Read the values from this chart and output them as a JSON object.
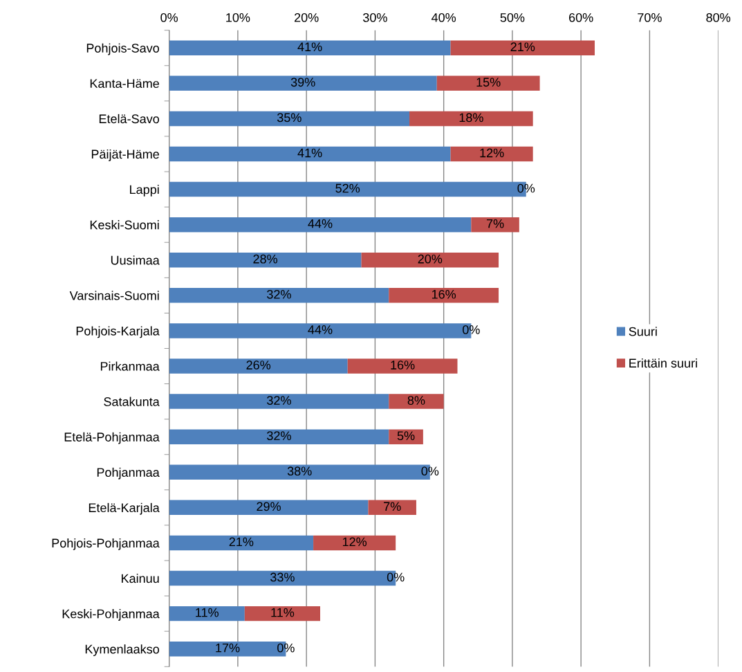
{
  "chart_data": {
    "type": "bar",
    "orientation": "horizontal",
    "stacked": true,
    "categories": [
      "Pohjois-Savo",
      "Kanta-Häme",
      "Etelä-Savo",
      "Päijät-Häme",
      "Lappi",
      "Keski-Suomi",
      "Uusimaa",
      "Varsinais-Suomi",
      "Pohjois-Karjala",
      "Pirkanmaa",
      "Satakunta",
      "Etelä-Pohjanmaa",
      "Pohjanmaa",
      "Etelä-Karjala",
      "Pohjois-Pohjanmaa",
      "Kainuu",
      "Keski-Pohjanmaa",
      "Kymenlaakso"
    ],
    "series": [
      {
        "name": "Suuri",
        "color": "#4f81bd",
        "values": [
          41,
          39,
          35,
          41,
          52,
          44,
          28,
          32,
          44,
          26,
          32,
          32,
          38,
          29,
          21,
          33,
          11,
          17
        ],
        "value_labels": [
          "41%",
          "39%",
          "35%",
          "41%",
          "52%",
          "44%",
          "28%",
          "32%",
          "44%",
          "26%",
          "32%",
          "32%",
          "38%",
          "29%",
          "21%",
          "33%",
          "11%",
          "17%"
        ]
      },
      {
        "name": "Erittäin suuri",
        "color": "#c0504d",
        "values": [
          21,
          15,
          18,
          12,
          0,
          7,
          20,
          16,
          0,
          16,
          8,
          5,
          0,
          7,
          12,
          0,
          11,
          0
        ],
        "value_labels": [
          "21%",
          "15%",
          "18%",
          "12%",
          "0%",
          "7%",
          "20%",
          "16%",
          "0%",
          "16%",
          "8%",
          "5%",
          "0%",
          "7%",
          "12%",
          "0%",
          "11%",
          "0%"
        ]
      }
    ],
    "xlim": [
      0,
      80
    ],
    "xticks": [
      {
        "value": 0,
        "label": "0%"
      },
      {
        "value": 10,
        "label": "10%"
      },
      {
        "value": 20,
        "label": "20%"
      },
      {
        "value": 30,
        "label": "30%"
      },
      {
        "value": 40,
        "label": "40%"
      },
      {
        "value": 50,
        "label": "50%"
      },
      {
        "value": 60,
        "label": "60%"
      },
      {
        "value": 70,
        "label": "70%"
      },
      {
        "value": 80,
        "label": "80%"
      }
    ],
    "grid": "x",
    "legend": "right"
  }
}
